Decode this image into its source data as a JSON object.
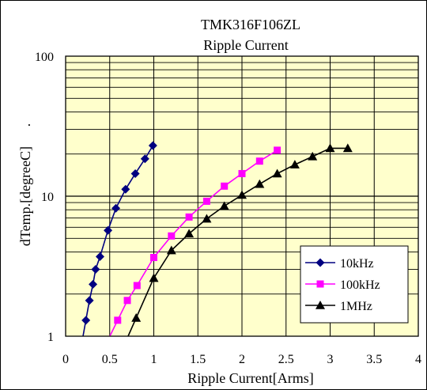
{
  "chart_data": {
    "type": "line",
    "title": "TMK316F106ZL",
    "subtitle": "Ripple Current",
    "xlabel": "Ripple Current[Arms]",
    "ylabel": "dTemp.[degreeC]",
    "ylabel_suffix": ".",
    "xlim": [
      0,
      4
    ],
    "ylim": [
      1,
      100
    ],
    "yscale": "log",
    "xticks": [
      "0",
      "0.5",
      "1",
      "1.5",
      "2",
      "2.5",
      "3",
      "3.5",
      "4"
    ],
    "yticks": [
      "1",
      "10",
      "100"
    ],
    "grid": true,
    "legend_position": "bottom-right",
    "colors": {
      "plot_background": "#ffffcc",
      "grid": "#000000",
      "series_10kHz": "#000080",
      "series_100kHz": "#ff00ff",
      "series_1MHz": "#000000"
    },
    "series": [
      {
        "name": "10kHz",
        "marker": "diamond",
        "x": [
          0.23,
          0.27,
          0.31,
          0.34,
          0.39,
          0.48,
          0.57,
          0.68,
          0.79,
          0.9,
          0.99
        ],
        "y": [
          1.3,
          1.8,
          2.35,
          3.0,
          3.7,
          5.7,
          8.2,
          11.2,
          14.5,
          18.5,
          23.0
        ]
      },
      {
        "name": "100kHz",
        "marker": "square",
        "x": [
          0.59,
          0.7,
          0.81,
          1.0,
          1.2,
          1.4,
          1.6,
          1.8,
          2.0,
          2.2,
          2.4
        ],
        "y": [
          1.3,
          1.8,
          2.3,
          3.65,
          5.2,
          7.1,
          9.2,
          11.8,
          14.5,
          17.8,
          21.3
        ]
      },
      {
        "name": "1MHz",
        "marker": "triangle",
        "x": [
          0.8,
          1.0,
          1.2,
          1.4,
          1.6,
          1.8,
          2.0,
          2.2,
          2.4,
          2.6,
          2.8,
          3.0,
          3.2
        ],
        "y": [
          1.35,
          2.6,
          4.1,
          5.4,
          6.9,
          8.5,
          10.2,
          12.2,
          14.5,
          16.8,
          19.2,
          22.0,
          22.0
        ]
      }
    ]
  }
}
